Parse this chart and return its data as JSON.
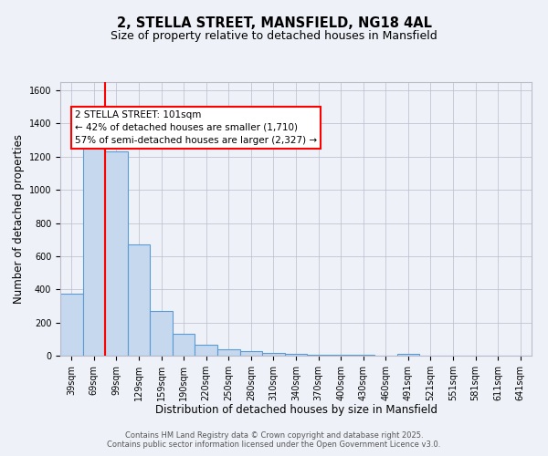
{
  "title_line1": "2, STELLA STREET, MANSFIELD, NG18 4AL",
  "title_line2": "Size of property relative to detached houses in Mansfield",
  "xlabel": "Distribution of detached houses by size in Mansfield",
  "ylabel": "Number of detached properties",
  "categories": [
    "39sqm",
    "69sqm",
    "99sqm",
    "129sqm",
    "159sqm",
    "190sqm",
    "220sqm",
    "250sqm",
    "280sqm",
    "310sqm",
    "340sqm",
    "370sqm",
    "400sqm",
    "430sqm",
    "460sqm",
    "491sqm",
    "521sqm",
    "551sqm",
    "581sqm",
    "611sqm",
    "641sqm"
  ],
  "values": [
    375,
    1300,
    1230,
    670,
    270,
    130,
    65,
    38,
    26,
    16,
    10,
    5,
    5,
    5,
    0,
    10,
    0,
    0,
    0,
    0,
    0
  ],
  "bar_color": "#c5d8ed",
  "bar_edge_color": "#5b9bd5",
  "bar_edge_width": 0.8,
  "redline_index": 2,
  "ylim": [
    0,
    1650
  ],
  "yticks": [
    0,
    200,
    400,
    600,
    800,
    1000,
    1200,
    1400,
    1600
  ],
  "annotation_text": "2 STELLA STREET: 101sqm\n← 42% of detached houses are smaller (1,710)\n57% of semi-detached houses are larger (2,327) →",
  "annotation_box_color": "white",
  "annotation_box_edge": "red",
  "background_color": "#eef2f8",
  "plot_background": "#eef2f8",
  "grid_color": "#bbbbcc",
  "footer_line1": "Contains HM Land Registry data © Crown copyright and database right 2025.",
  "footer_line2": "Contains public sector information licensed under the Open Government Licence v3.0.",
  "title_fontsize": 10.5,
  "subtitle_fontsize": 9,
  "axis_label_fontsize": 8.5,
  "tick_fontsize": 7,
  "annotation_fontsize": 7.5,
  "footer_fontsize": 6
}
